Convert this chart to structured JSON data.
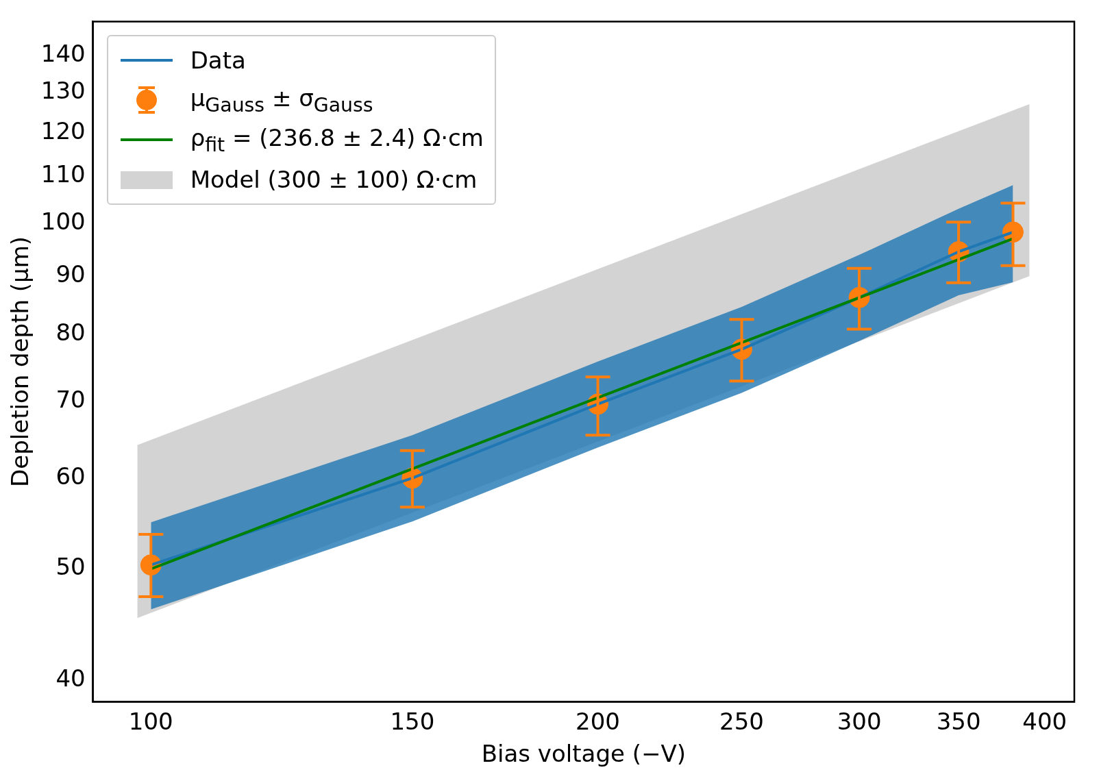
{
  "chart_data": {
    "type": "line",
    "xlabel": "Bias voltage (−V)",
    "ylabel": "Depletion depth (µm)",
    "log": "xy",
    "xlim": [
      91.4,
      418.8
    ],
    "ylim": [
      38.3,
      150
    ],
    "xticks": [
      100,
      150,
      200,
      250,
      300,
      350,
      400
    ],
    "yticks": [
      40,
      50,
      60,
      70,
      80,
      90,
      100,
      110,
      120,
      130,
      140
    ],
    "grid": false,
    "legend": "top left",
    "series": [
      {
        "name": "Data",
        "color": "#1f77b4",
        "x": [
          100,
          150,
          200,
          250,
          300,
          350,
          380.8
        ],
        "values": [
          50.4,
          60.0,
          69.6,
          77.7,
          86.2,
          94.5,
          98.3
        ],
        "lower": [
          46.1,
          55.0,
          63.8,
          71.2,
          79.0,
          86.6,
          88.9
        ],
        "upper": [
          54.9,
          65.4,
          75.8,
          84.6,
          93.9,
          103.0,
          108.0
        ]
      },
      {
        "name": "μ$_{Gauss}$ ± σ$_{Gauss}$",
        "type": "scatter",
        "marker": "circle",
        "color": "#ff7f0e",
        "x": [
          100,
          150,
          200,
          250,
          300,
          350,
          380.8
        ],
        "values": [
          50.4,
          60.0,
          69.6,
          77.7,
          86.2,
          94.5,
          98.3
        ],
        "errors": [
          [
            47.3,
            53.6
          ],
          [
            56.6,
            63.4
          ],
          [
            65.4,
            73.5
          ],
          [
            72.9,
            82.5
          ],
          [
            80.9,
            91.4
          ],
          [
            88.8,
            100.3
          ],
          [
            91.9,
            104.2
          ]
        ]
      },
      {
        "name": "ρ$_{fit}$ = (236.8 ± 2.4) Ω·cm",
        "color": "#008000",
        "x": [
          100,
          380.8
        ],
        "values": [
          50.0,
          97.0
        ]
      },
      {
        "name": "Model (300 ± 100) Ω·cm",
        "type": "area",
        "color": "#d3d3d3",
        "x": [
          97.9,
          390.7
        ],
        "values": [
          null,
          null
        ],
        "lower": [
          45.3,
          90.0
        ],
        "upper": [
          64.1,
          127.1
        ]
      }
    ]
  }
}
